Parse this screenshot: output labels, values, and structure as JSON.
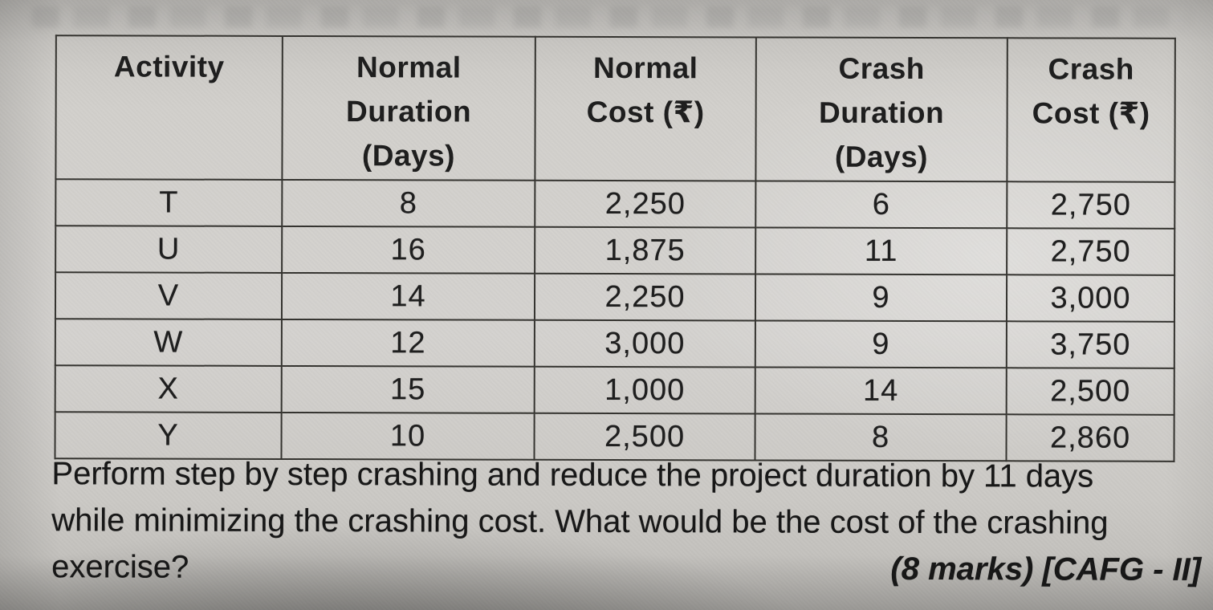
{
  "table": {
    "columns": [
      {
        "lines": [
          "Activity",
          "",
          ""
        ]
      },
      {
        "lines": [
          "Normal",
          "Duration",
          "(Days)"
        ]
      },
      {
        "lines": [
          "Normal",
          "Cost (₹)",
          ""
        ]
      },
      {
        "lines": [
          "Crash",
          "Duration",
          "(Days)"
        ]
      },
      {
        "lines": [
          "Crash",
          "Cost (₹)",
          ""
        ]
      }
    ],
    "rows": [
      {
        "activity": "T",
        "normal_duration": "8",
        "normal_cost": "2,250",
        "crash_duration": "6",
        "crash_cost": "2,750"
      },
      {
        "activity": "U",
        "normal_duration": "16",
        "normal_cost": "1,875",
        "crash_duration": "11",
        "crash_cost": "2,750"
      },
      {
        "activity": "V",
        "normal_duration": "14",
        "normal_cost": "2,250",
        "crash_duration": "9",
        "crash_cost": "3,000"
      },
      {
        "activity": "W",
        "normal_duration": "12",
        "normal_cost": "3,000",
        "crash_duration": "9",
        "crash_cost": "3,750"
      },
      {
        "activity": "X",
        "normal_duration": "15",
        "normal_cost": "1,000",
        "crash_duration": "14",
        "crash_cost": "2,500"
      },
      {
        "activity": "Y",
        "normal_duration": "10",
        "normal_cost": "2,500",
        "crash_duration": "8",
        "crash_cost": "2,860"
      }
    ]
  },
  "question": {
    "line1": "Perform step by step crashing and reduce the project duration by 11 days",
    "line2": "while minimizing the crashing cost. What would be the cost of the crashing",
    "line3": "exercise?",
    "marks": "(8 marks) [CAFG - II]"
  },
  "chart_data": {
    "type": "table",
    "title": "Activity crashing data",
    "columns": [
      "Activity",
      "Normal Duration (Days)",
      "Normal Cost (₹)",
      "Crash Duration (Days)",
      "Crash Cost (₹)"
    ],
    "rows": [
      [
        "T",
        8,
        2250,
        6,
        2750
      ],
      [
        "U",
        16,
        1875,
        11,
        2750
      ],
      [
        "V",
        14,
        2250,
        9,
        3000
      ],
      [
        "W",
        12,
        3000,
        9,
        3750
      ],
      [
        "X",
        15,
        1000,
        14,
        2500
      ],
      [
        "Y",
        10,
        2500,
        8,
        2860
      ]
    ]
  }
}
